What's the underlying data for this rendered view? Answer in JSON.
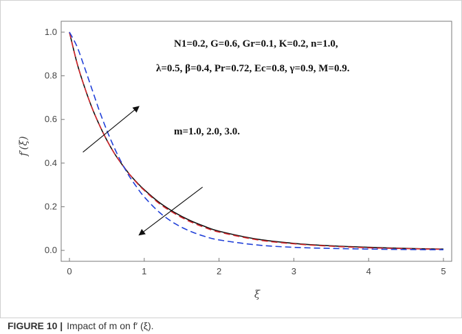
{
  "caption": {
    "label": "FIGURE 10 |",
    "text": "Impact of m on f′ (ξ)."
  },
  "chart_data": {
    "type": "line",
    "xlabel": "ξ",
    "ylabel": "f′(ξ)",
    "xlim": [
      0,
      5
    ],
    "ylim": [
      -0.05,
      1.05
    ],
    "xticks": [
      0,
      1,
      2,
      3,
      4,
      5
    ],
    "yticks": [
      0.0,
      0.2,
      0.4,
      0.6,
      0.8,
      1.0
    ],
    "ytick_labels": [
      "0.0",
      "0.2",
      "0.4",
      "0.6",
      "0.8",
      "1.0"
    ],
    "grid": false,
    "x": [
      0,
      0.1,
      0.2,
      0.3,
      0.4,
      0.5,
      0.6,
      0.7,
      0.8,
      0.9,
      1.0,
      1.2,
      1.4,
      1.6,
      1.8,
      2.0,
      2.5,
      3.0,
      3.5,
      4.0,
      4.5,
      5.0
    ],
    "series": [
      {
        "color": "#1f3fd8",
        "dash": "dashed",
        "values": [
          1.0,
          0.935,
          0.84,
          0.74,
          0.64,
          0.55,
          0.47,
          0.4,
          0.34,
          0.29,
          0.245,
          0.175,
          0.125,
          0.09,
          0.065,
          0.048,
          0.025,
          0.014,
          0.009,
          0.006,
          0.004,
          0.003
        ]
      },
      {
        "color": "#d6262b",
        "dash": "dashed",
        "values": [
          1.0,
          0.86,
          0.75,
          0.655,
          0.575,
          0.505,
          0.445,
          0.395,
          0.35,
          0.31,
          0.275,
          0.215,
          0.17,
          0.134,
          0.106,
          0.084,
          0.049,
          0.03,
          0.019,
          0.012,
          0.008,
          0.005
        ]
      },
      {
        "color": "#111111",
        "dash": "solid",
        "values": [
          1.0,
          0.86,
          0.75,
          0.655,
          0.575,
          0.505,
          0.445,
          0.395,
          0.35,
          0.312,
          0.278,
          0.22,
          0.175,
          0.139,
          0.111,
          0.088,
          0.052,
          0.032,
          0.021,
          0.014,
          0.009,
          0.006
        ]
      }
    ],
    "annotations": [
      "N1=0.2, G=0.6, Gr=0.1, K=0.2, n=1.0,",
      "λ=0.5, β=0.4, Pr=0.72, Ec=0.8, γ=0.9, M=0.9.",
      "m=1.0, 2.0, 3.0."
    ],
    "arrows": [
      {
        "from": [
          0.18,
          0.45
        ],
        "to": [
          0.93,
          0.66
        ]
      },
      {
        "from": [
          1.78,
          0.29
        ],
        "to": [
          0.93,
          0.07
        ]
      }
    ]
  }
}
